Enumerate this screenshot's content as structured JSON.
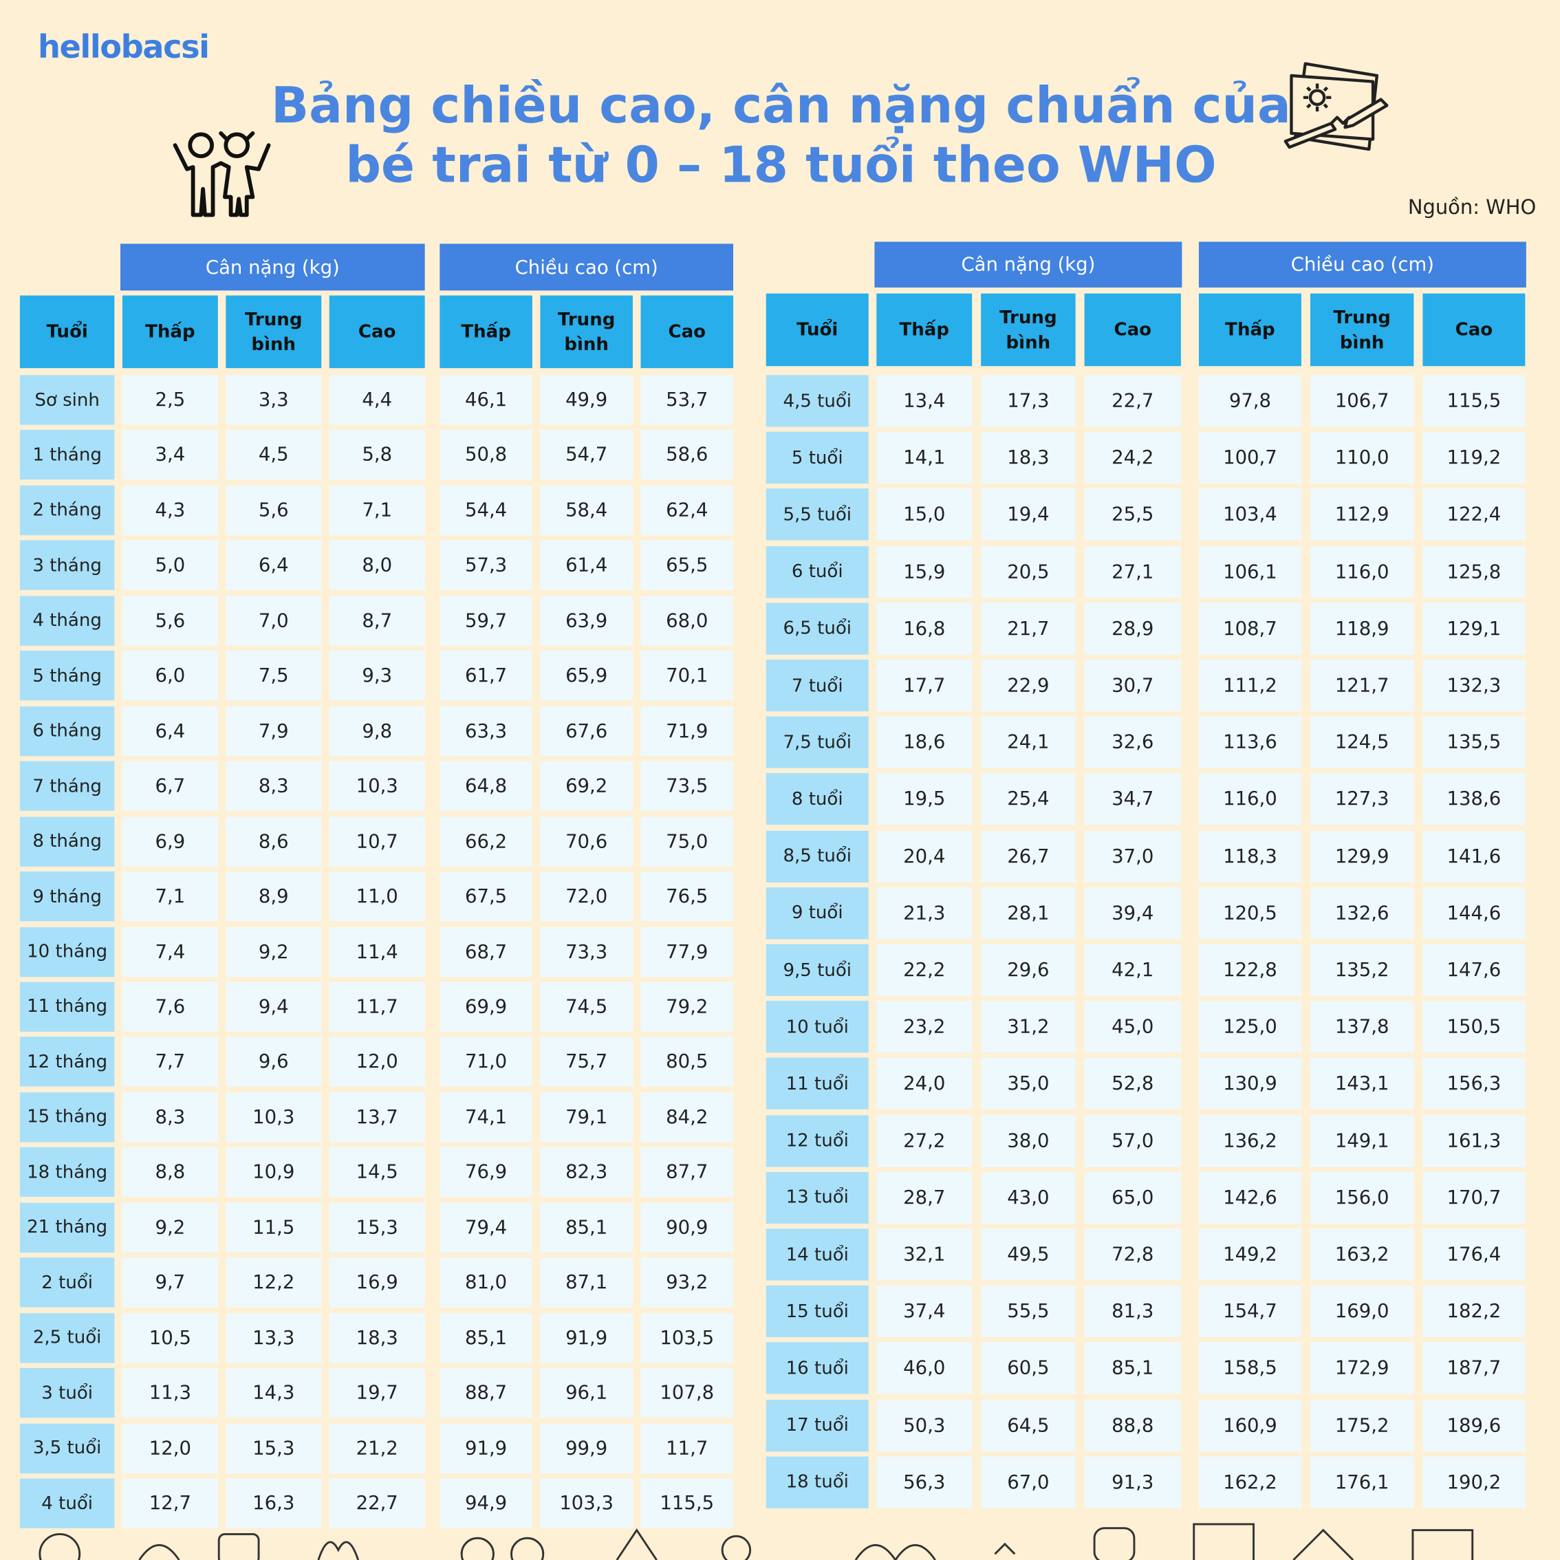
{
  "logo": "hellobacsi",
  "title": [
    "Bảng chiều cao, cân nặng chuẩn của",
    "bé trai từ 0 – 18 tuổi theo WHO"
  ],
  "source": "Nguồn: WHO",
  "left_table": {
    "group_headers": [
      "Cân nặng (kg)",
      "Chiều cao (cm)"
    ],
    "columns": [
      "Tuổi",
      "Thấp",
      "Trung bình",
      "Cao",
      "Thấp",
      "Trung bình",
      "Cao"
    ],
    "rows": [
      [
        "Sơ sinh",
        "2,5",
        "3,3",
        "4,4",
        "46,1",
        "49,9",
        "53,7"
      ],
      [
        "1 tháng",
        "3,4",
        "4,5",
        "5,8",
        "50,8",
        "54,7",
        "58,6"
      ],
      [
        "2 tháng",
        "4,3",
        "5,6",
        "7,1",
        "54,4",
        "58,4",
        "62,4"
      ],
      [
        "3 tháng",
        "5,0",
        "6,4",
        "8,0",
        "57,3",
        "61,4",
        "65,5"
      ],
      [
        "4 tháng",
        "5,6",
        "7,0",
        "8,7",
        "59,7",
        "63,9",
        "68,0"
      ],
      [
        "5 tháng",
        "6,0",
        "7,5",
        "9,3",
        "61,7",
        "65,9",
        "70,1"
      ],
      [
        "6 tháng",
        "6,4",
        "7,9",
        "9,8",
        "63,3",
        "67,6",
        "71,9"
      ],
      [
        "7 tháng",
        "6,7",
        "8,3",
        "10,3",
        "64,8",
        "69,2",
        "73,5"
      ],
      [
        "8 tháng",
        "6,9",
        "8,6",
        "10,7",
        "66,2",
        "70,6",
        "75,0"
      ],
      [
        "9 tháng",
        "7,1",
        "8,9",
        "11,0",
        "67,5",
        "72,0",
        "76,5"
      ],
      [
        "10 tháng",
        "7,4",
        "9,2",
        "11,4",
        "68,7",
        "73,3",
        "77,9"
      ],
      [
        "11 tháng",
        "7,6",
        "9,4",
        "11,7",
        "69,9",
        "74,5",
        "79,2"
      ],
      [
        "12 tháng",
        "7,7",
        "9,6",
        "12,0",
        "71,0",
        "75,7",
        "80,5"
      ],
      [
        "15 tháng",
        "8,3",
        "10,3",
        "13,7",
        "74,1",
        "79,1",
        "84,2"
      ],
      [
        "18 tháng",
        "8,8",
        "10,9",
        "14,5",
        "76,9",
        "82,3",
        "87,7"
      ],
      [
        "21 tháng",
        "9,2",
        "11,5",
        "15,3",
        "79,4",
        "85,1",
        "90,9"
      ],
      [
        "2 tuổi",
        "9,7",
        "12,2",
        "16,9",
        "81,0",
        "87,1",
        "93,2"
      ],
      [
        "2,5 tuổi",
        "10,5",
        "13,3",
        "18,3",
        "85,1",
        "91,9",
        "103,5"
      ],
      [
        "3 tuổi",
        "11,3",
        "14,3",
        "19,7",
        "88,7",
        "96,1",
        "107,8"
      ],
      [
        "3,5 tuổi",
        "12,0",
        "15,3",
        "21,2",
        "91,9",
        "99,9",
        "11,7"
      ],
      [
        "4 tuổi",
        "12,7",
        "16,3",
        "22,7",
        "94,9",
        "103,3",
        "115,5"
      ]
    ]
  },
  "right_table": {
    "group_headers": [
      "Cân nặng (kg)",
      "Chiều cao (cm)"
    ],
    "columns": [
      "Tuổi",
      "Thấp",
      "Trung bình",
      "Cao",
      "Thấp",
      "Trung bình",
      "Cao"
    ],
    "rows": [
      [
        "4,5 tuổi",
        "13,4",
        "17,3",
        "22,7",
        "97,8",
        "106,7",
        "115,5"
      ],
      [
        "5 tuổi",
        "14,1",
        "18,3",
        "24,2",
        "100,7",
        "110,0",
        "119,2"
      ],
      [
        "5,5 tuổi",
        "15,0",
        "19,4",
        "25,5",
        "103,4",
        "112,9",
        "122,4"
      ],
      [
        "6 tuổi",
        "15,9",
        "20,5",
        "27,1",
        "106,1",
        "116,0",
        "125,8"
      ],
      [
        "6,5 tuổi",
        "16,8",
        "21,7",
        "28,9",
        "108,7",
        "118,9",
        "129,1"
      ],
      [
        "7 tuổi",
        "17,7",
        "22,9",
        "30,7",
        "111,2",
        "121,7",
        "132,3"
      ],
      [
        "7,5 tuổi",
        "18,6",
        "24,1",
        "32,6",
        "113,6",
        "124,5",
        "135,5"
      ],
      [
        "8 tuổi",
        "19,5",
        "25,4",
        "34,7",
        "116,0",
        "127,3",
        "138,6"
      ],
      [
        "8,5 tuổi",
        "20,4",
        "26,7",
        "37,0",
        "118,3",
        "129,9",
        "141,6"
      ],
      [
        "9 tuổi",
        "21,3",
        "28,1",
        "39,4",
        "120,5",
        "132,6",
        "144,6"
      ],
      [
        "9,5 tuổi",
        "22,2",
        "29,6",
        "42,1",
        "122,8",
        "135,2",
        "147,6"
      ],
      [
        "10 tuổi",
        "23,2",
        "31,2",
        "45,0",
        "125,0",
        "137,8",
        "150,5"
      ],
      [
        "11 tuổi",
        "24,0",
        "35,0",
        "52,8",
        "130,9",
        "143,1",
        "156,3"
      ],
      [
        "12 tuổi",
        "27,2",
        "38,0",
        "57,0",
        "136,2",
        "149,1",
        "161,3"
      ],
      [
        "13 tuổi",
        "28,7",
        "43,0",
        "65,0",
        "142,6",
        "156,0",
        "170,7"
      ],
      [
        "14 tuổi",
        "32,1",
        "49,5",
        "72,8",
        "149,2",
        "163,2",
        "176,4"
      ],
      [
        "15 tuổi",
        "37,4",
        "55,5",
        "81,3",
        "154,7",
        "169,0",
        "182,2"
      ],
      [
        "16 tuổi",
        "46,0",
        "60,5",
        "85,1",
        "158,5",
        "172,9",
        "187,7"
      ],
      [
        "17 tuổi",
        "50,3",
        "64,5",
        "88,8",
        "160,9",
        "175,2",
        "189,6"
      ],
      [
        "18 tuổi",
        "56,3",
        "67,0",
        "91,3",
        "162,2",
        "176,1",
        "190,2"
      ]
    ]
  }
}
